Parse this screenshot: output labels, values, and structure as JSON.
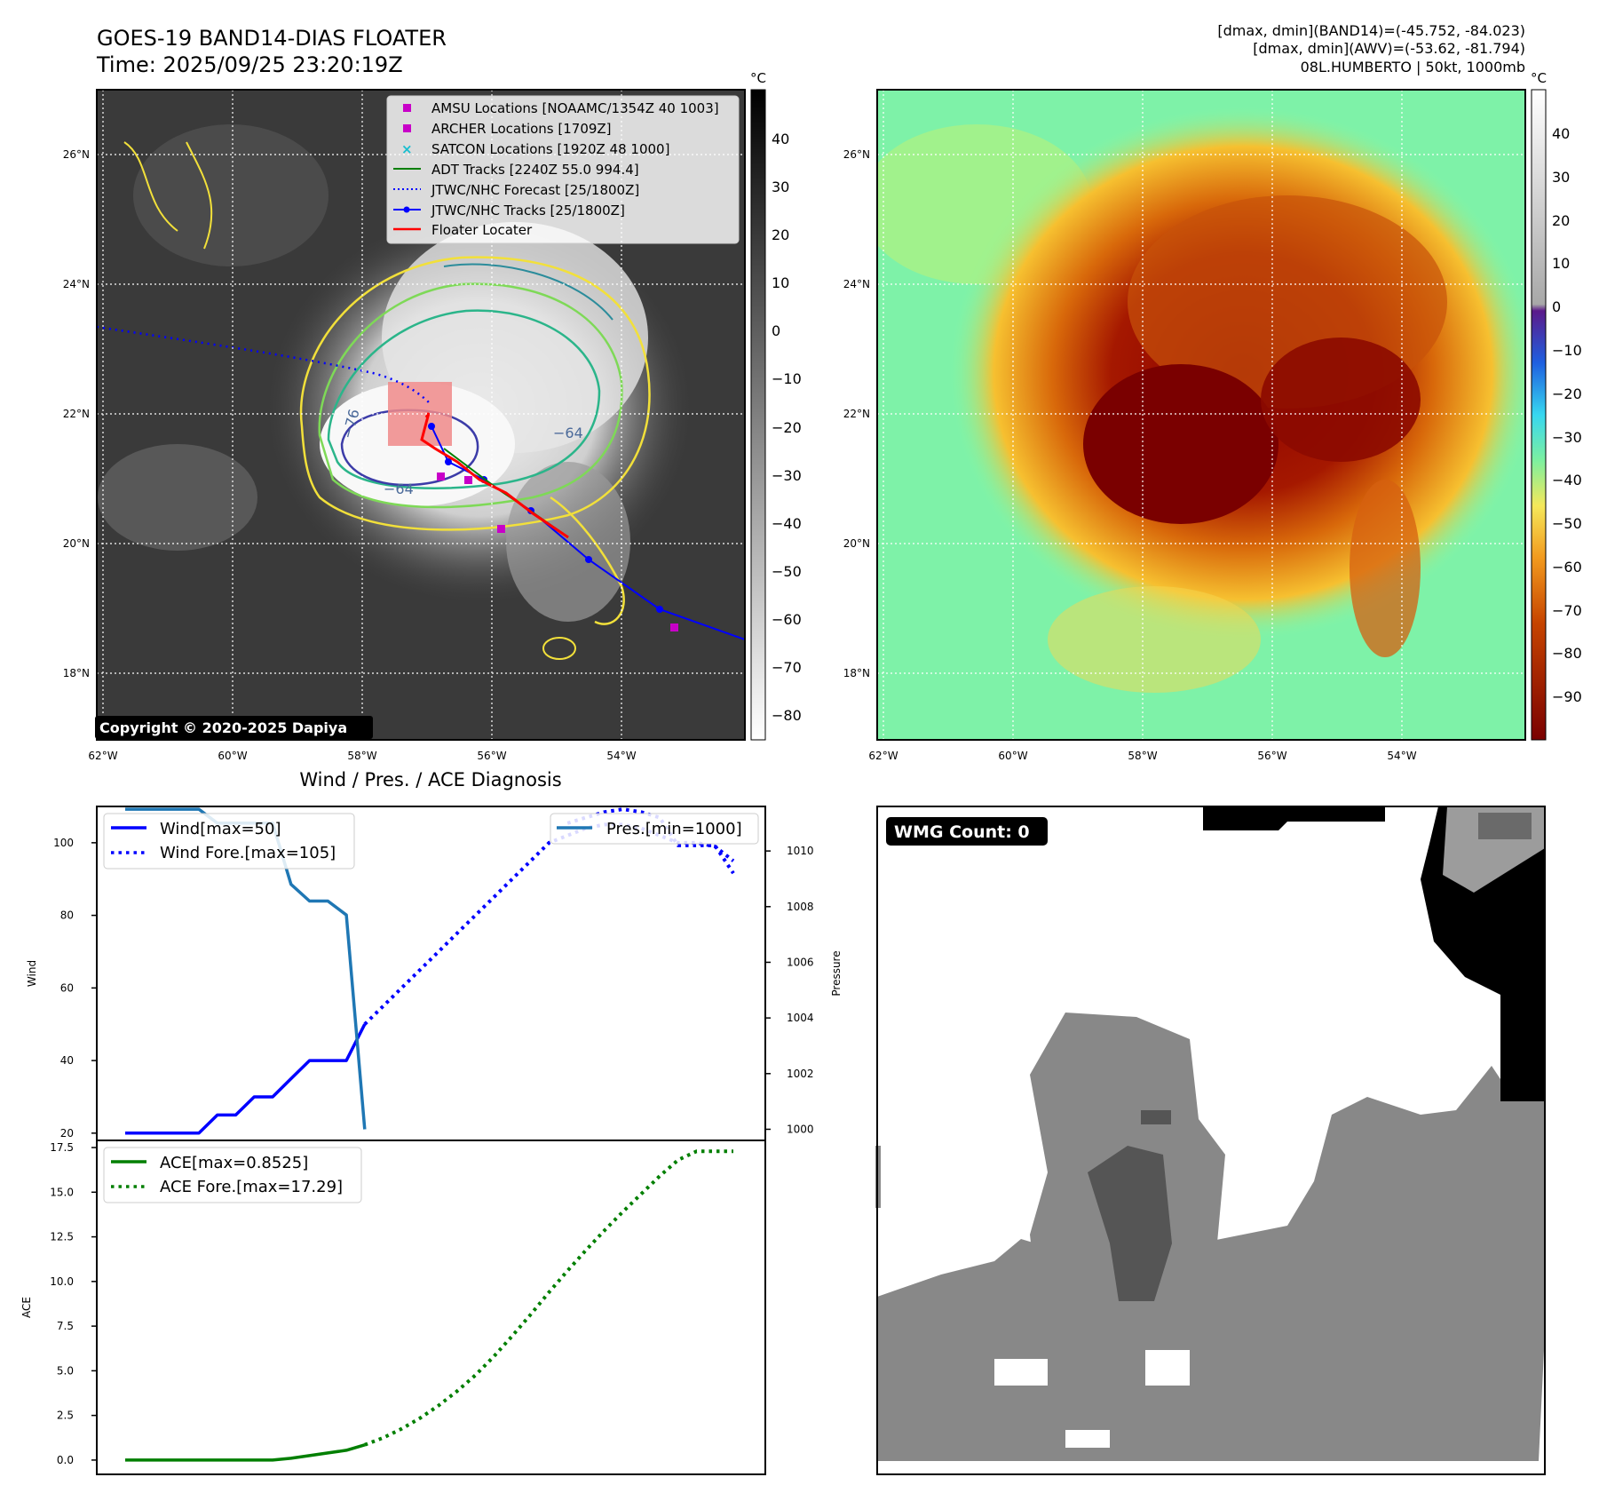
{
  "header": {
    "title": "GOES-19 BAND14-DIAS FLOATER",
    "time": "Time: 2025/09/25 23:20:19Z",
    "info_line1": "[dmax, dmin](BAND14)=(-45.752, -84.023)",
    "info_line2": "[dmax, dmin](AWV)=(-53.62, -81.794)",
    "info_line3": "08L.HUMBERTO | 50kt, 1000mb"
  },
  "map_panel": {
    "lat_labels": [
      "26°N",
      "24°N",
      "22°N",
      "20°N",
      "18°N"
    ],
    "lon_labels": [
      "62°W",
      "60°W",
      "58°W",
      "56°W",
      "54°W"
    ],
    "copyright": "Copyright © 2020-2025 Dapiya",
    "colorbar_unit": "°C",
    "colorbar_ticks": [
      "40",
      "30",
      "20",
      "10",
      "0",
      "−10",
      "−20",
      "−30",
      "−40",
      "−50",
      "−60",
      "−70",
      "−80"
    ],
    "contour_labels": [
      "−76",
      "−64",
      "−64"
    ],
    "legend": [
      {
        "label": "AMSU Locations [NOAAMC/1354Z 40 1003]",
        "marker": "square",
        "color": "#c800c8"
      },
      {
        "label": "ARCHER Locations [1709Z]",
        "marker": "square",
        "color": "#c800c8"
      },
      {
        "label": "SATCON Locations [1920Z 48 1000]",
        "marker": "x",
        "color": "#17becf"
      },
      {
        "label": "ADT Tracks [2240Z 55.0 994.4]",
        "marker": "line",
        "color": "#007f00"
      },
      {
        "label": "JTWC/NHC Forecast [25/1800Z]",
        "marker": "dotted",
        "color": "#0000ff"
      },
      {
        "label": "JTWC/NHC Tracks [25/1800Z]",
        "marker": "line-dot",
        "color": "#0000ff"
      },
      {
        "label": "Floater Locater",
        "marker": "line",
        "color": "#ff0000"
      }
    ]
  },
  "awv_panel": {
    "lat_labels": [
      "26°N",
      "24°N",
      "22°N",
      "20°N",
      "18°N"
    ],
    "lon_labels": [
      "62°W",
      "60°W",
      "58°W",
      "56°W",
      "54°W"
    ],
    "colorbar_unit": "°C",
    "colorbar_ticks": [
      "40",
      "30",
      "20",
      "10",
      "0",
      "−10",
      "−20",
      "−30",
      "−40",
      "−50",
      "−60",
      "−70",
      "−80",
      "−90"
    ]
  },
  "chart_data": [
    {
      "type": "line",
      "title": "Wind / Pres. / ACE Diagnosis",
      "ylabel": "Wind",
      "y2label": "Pressure",
      "ylim": [
        18,
        110
      ],
      "y2lim": [
        999.6,
        1011.6
      ],
      "yticks": [
        "100",
        "80",
        "60",
        "40",
        "20"
      ],
      "y2ticks": [
        "1010",
        "1008",
        "1006",
        "1004",
        "1002",
        "1000"
      ],
      "x": [
        0,
        1,
        2,
        3,
        4,
        5,
        6,
        7,
        8,
        9,
        10,
        11,
        12,
        13,
        14,
        15,
        16,
        17,
        18,
        19,
        20,
        21,
        22,
        23,
        24,
        25,
        26,
        27,
        28,
        29,
        30,
        31,
        32,
        33
      ],
      "series": [
        {
          "name": "Wind",
          "legend": "Wind[max=50]",
          "style": "solid",
          "color": "#0000ff",
          "x": [
            0,
            1,
            2,
            3,
            4,
            5,
            6,
            7,
            8,
            9,
            10,
            11,
            12,
            13
          ],
          "values": [
            20,
            20,
            20,
            20,
            20,
            25,
            25,
            30,
            30,
            35,
            40,
            40,
            40,
            50
          ]
        },
        {
          "name": "Wind Fore.",
          "legend": "Wind Fore.[max=105]",
          "style": "dotted",
          "color": "#0000ff",
          "x": [
            13,
            14,
            15,
            16,
            17,
            18,
            19,
            20,
            21,
            22,
            23,
            24,
            25,
            26,
            27,
            28,
            29,
            30,
            31,
            32,
            33
          ],
          "values": [
            50,
            55,
            60,
            65,
            70,
            75,
            80,
            85,
            90,
            95,
            100,
            102,
            104,
            105,
            105,
            104,
            102,
            100,
            100,
            99,
            95
          ]
        },
        {
          "name": "Pres.",
          "legend": "Pres.[min=1000]",
          "style": "solid",
          "color": "#1f77b4",
          "axis": "right",
          "x": [
            0,
            1,
            2,
            3,
            4,
            5,
            6,
            7,
            8,
            9,
            10,
            11,
            12,
            13
          ],
          "values": [
            1011.5,
            1011.5,
            1011.5,
            1011.5,
            1011.5,
            1011.0,
            1011.0,
            1011.0,
            1011.0,
            1008.8,
            1008.2,
            1008.2,
            1007.7,
            1000.0
          ]
        },
        {
          "name": "Pres. Fore.",
          "style": "dotted",
          "color": "#0000ff",
          "axis": "right",
          "x": [
            24,
            25,
            26,
            27,
            28,
            29,
            30,
            31,
            32,
            33
          ],
          "values": [
            1011.0,
            1011.2,
            1011.4,
            1011.5,
            1011.4,
            1011.2,
            1010.2,
            1010.2,
            1010.2,
            1009.2
          ]
        }
      ]
    },
    {
      "type": "line",
      "ylabel": "ACE",
      "ylim": [
        -0.8,
        17.9
      ],
      "yticks": [
        "17.5",
        "15.0",
        "12.5",
        "10.0",
        "7.5",
        "5.0",
        "2.5",
        "0.0"
      ],
      "series": [
        {
          "name": "ACE",
          "legend": "ACE[max=0.8525]",
          "style": "solid",
          "color": "#007f00",
          "x": [
            0,
            1,
            2,
            3,
            4,
            5,
            6,
            7,
            8,
            9,
            10,
            11,
            12,
            13
          ],
          "values": [
            0,
            0,
            0,
            0,
            0,
            0,
            0,
            0,
            0,
            0.1,
            0.25,
            0.4,
            0.55,
            0.85
          ]
        },
        {
          "name": "ACE Fore.",
          "legend": "ACE Fore.[max=17.29]",
          "style": "dotted",
          "color": "#007f00",
          "x": [
            13,
            14,
            15,
            16,
            17,
            18,
            19,
            20,
            21,
            22,
            23,
            24,
            25,
            26,
            27,
            28,
            29,
            30,
            31,
            32,
            33
          ],
          "values": [
            0.85,
            1.25,
            1.75,
            2.35,
            3.05,
            3.85,
            4.75,
            5.8,
            6.95,
            8.15,
            9.4,
            10.6,
            11.75,
            12.85,
            13.9,
            14.9,
            15.9,
            16.8,
            17.29,
            17.29,
            17.29
          ]
        }
      ]
    }
  ],
  "wmg_panel": {
    "badge": "WMG Count: 0"
  }
}
